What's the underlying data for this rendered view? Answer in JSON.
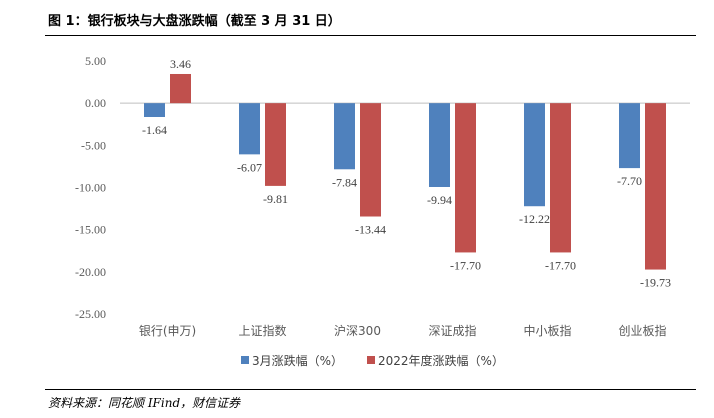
{
  "figure": {
    "title": "图 1：银行板块与大盘涨跌幅（截至 3 月 31 日）",
    "source": "资料来源：同花顺 IFind，财信证券"
  },
  "chart_data": {
    "type": "bar",
    "title": "图 1：银行板块与大盘涨跌幅（截至 3 月 31 日）",
    "categories": [
      "银行(申万)",
      "上证指数",
      "沪深300",
      "深证成指",
      "中小板指",
      "创业板指"
    ],
    "series": [
      {
        "name": "3月涨跌幅（%）",
        "color": "#4F81BD",
        "values": [
          -1.64,
          -6.07,
          -7.84,
          -9.94,
          -12.22,
          -7.7
        ]
      },
      {
        "name": "2022年度涨跌幅（%）",
        "color": "#C0504D",
        "values": [
          3.46,
          -9.81,
          -13.44,
          -17.7,
          -17.7,
          -19.73
        ]
      }
    ],
    "data_labels": [
      [
        "-1.64",
        "-6.07",
        "-7.84",
        "-9.94",
        "-12.22",
        "-7.70"
      ],
      [
        "3.46",
        "-9.81",
        "-13.44",
        "-17.70",
        "-17.70",
        "-19.73"
      ]
    ],
    "ylim": [
      -25,
      5
    ],
    "yticks": [
      5,
      0,
      -5,
      -10,
      -15,
      -20,
      -25
    ],
    "ytick_labels": [
      "5.00",
      "0.00",
      "-5.00",
      "-10.00",
      "-15.00",
      "-20.00",
      "-25.00"
    ],
    "xlabel": "",
    "ylabel": "",
    "grid": false,
    "legend": "bottom"
  }
}
